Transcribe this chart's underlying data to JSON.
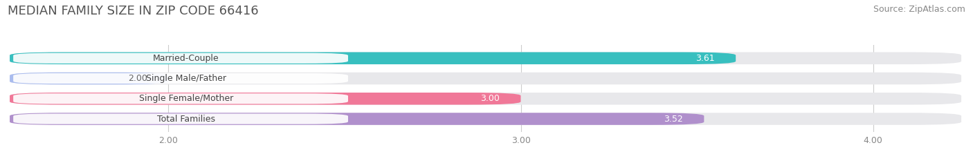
{
  "title": "MEDIAN FAMILY SIZE IN ZIP CODE 66416",
  "source": "Source: ZipAtlas.com",
  "categories": [
    "Married-Couple",
    "Single Male/Father",
    "Single Female/Mother",
    "Total Families"
  ],
  "values": [
    3.61,
    2.0,
    3.0,
    3.52
  ],
  "bar_colors": [
    "#38bfbf",
    "#aabcee",
    "#f07898",
    "#b090cc"
  ],
  "value_label_colors": [
    "#ffffff",
    "#666666",
    "#ffffff",
    "#ffffff"
  ],
  "xlim_start": 1.55,
  "xlim_end": 4.25,
  "xticks": [
    2.0,
    3.0,
    4.0
  ],
  "xtick_labels": [
    "2.00",
    "3.00",
    "4.00"
  ],
  "background_color": "#ffffff",
  "bar_bg_color": "#e8e8eb",
  "pill_bg_color": "#ffffff",
  "title_fontsize": 13,
  "source_fontsize": 9,
  "label_fontsize": 9,
  "value_fontsize": 9
}
